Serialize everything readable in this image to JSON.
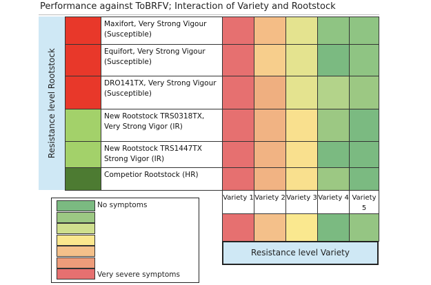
{
  "title": "Performance against ToBRFV; Interaction of Variety and Rootstock",
  "rootstock_axis_label": "Resistance level Rootstock",
  "variety_axis_label": "Resistance level Variety",
  "rootstocks": [
    {
      "name": "Maxifort, Very Strong Vigour (Susceptible)",
      "color": "#E8382A",
      "cells": [
        "#E67070",
        "#F4BD86",
        "#E4E38F",
        "#8FC483",
        "#8FC483"
      ]
    },
    {
      "name": "Equifort, Very Strong Vigour (Susceptible)",
      "color": "#E8382A",
      "cells": [
        "#E67070",
        "#F7CE8C",
        "#E4E38F",
        "#7BBA81",
        "#8FC483"
      ]
    },
    {
      "name": "DRO141TX, Very Strong Vigour (Susceptible)",
      "color": "#E8382A",
      "cells": [
        "#E67070",
        "#EFAF80",
        "#E4E38F",
        "#B3D38A",
        "#9CC883"
      ]
    },
    {
      "name": "New Rootstock  TRS0318TX, Very Strong Vigor (IR)",
      "color": "#A3D16A",
      "cells": [
        "#E67070",
        "#F1B383",
        "#F9E08E",
        "#9CC883",
        "#7BBA81"
      ]
    },
    {
      "name": "New Rootstock TRS1447TX  Strong Vigor (IR)",
      "color": "#A3D16A",
      "cells": [
        "#E67070",
        "#F1B383",
        "#F9E08E",
        "#7BBA81",
        "#7BBA81"
      ]
    },
    {
      "name": "Competior Rootstock (HR)",
      "color": "#4D7B32",
      "cells": [
        "#E67070",
        "#F1B383",
        "#F9E08E",
        "#9CC883",
        "#7BBA81"
      ]
    }
  ],
  "varieties": [
    {
      "label": "Variety 1",
      "color": "#E67070"
    },
    {
      "label": "Variety 2",
      "color": "#F4C08A"
    },
    {
      "label": "Variety 3",
      "color": "#FAE88F"
    },
    {
      "label": "Variety 4",
      "color": "#7BBA81"
    },
    {
      "label": "Variety 5",
      "color": "#95C583"
    }
  ],
  "legend": {
    "top_label": "No symptoms",
    "bottom_label": "Very severe symptoms",
    "colors": [
      "#7BBA81",
      "#9CC883",
      "#CFDF8E",
      "#FBE78E",
      "#F4C08A",
      "#EE9C7A",
      "#E67070"
    ]
  }
}
